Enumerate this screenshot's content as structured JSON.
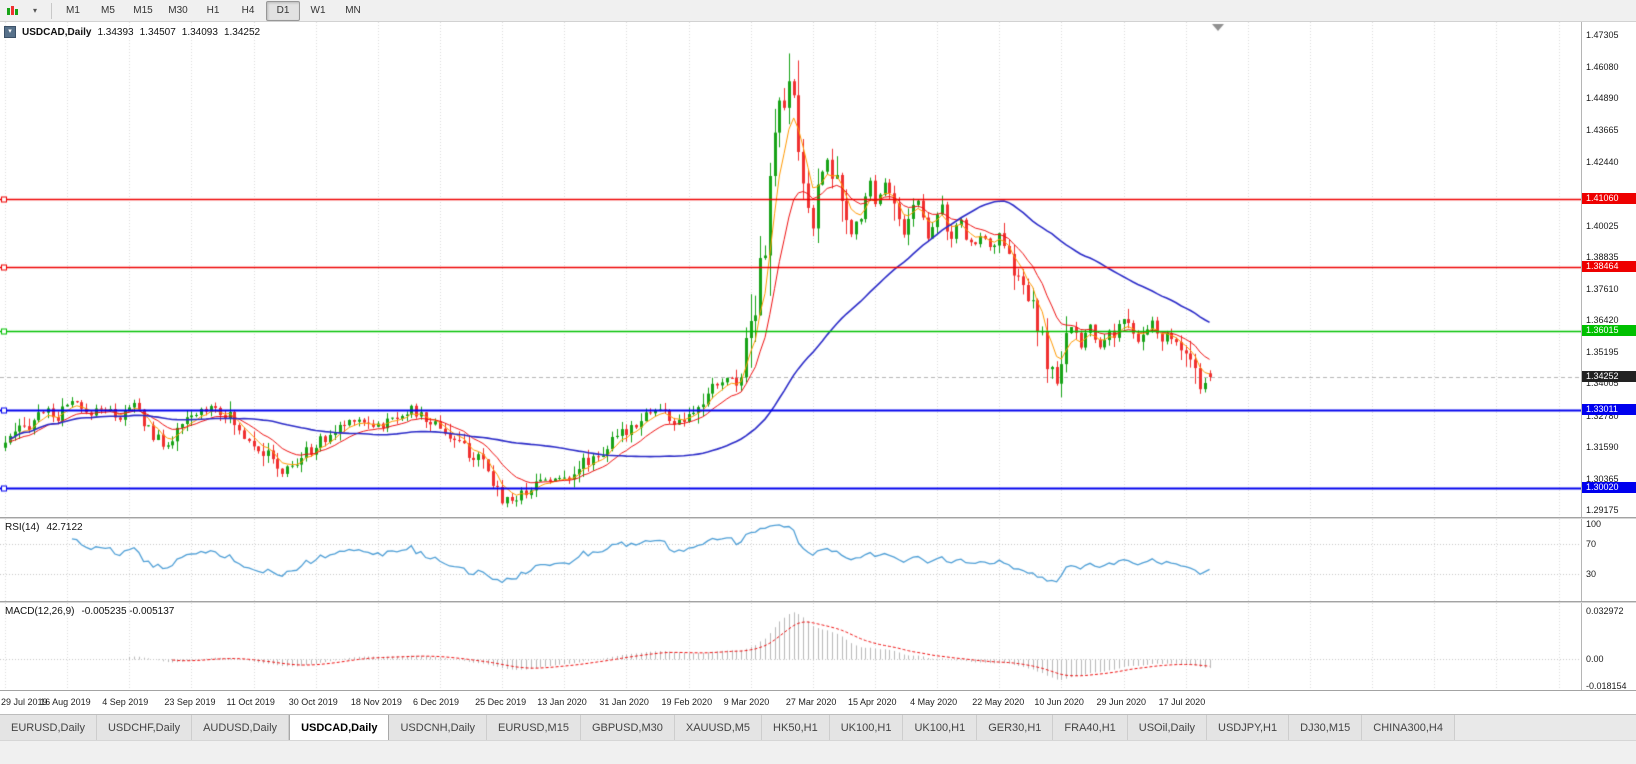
{
  "toolbar": {
    "timeframes": [
      {
        "label": "M1"
      },
      {
        "label": "M5"
      },
      {
        "label": "M15"
      },
      {
        "label": "M30"
      },
      {
        "label": "H1"
      },
      {
        "label": "H4"
      },
      {
        "label": "D1"
      },
      {
        "label": "W1"
      },
      {
        "label": "MN"
      }
    ],
    "active_timeframe": "D1"
  },
  "chart_header": {
    "symbol_period": "USDCAD,Daily",
    "open": "1.34393",
    "high": "1.34507",
    "low": "1.34093",
    "close": "1.34252"
  },
  "indicators": {
    "rsi": {
      "label": "RSI(14)",
      "value": "42.7122"
    },
    "macd": {
      "label": "MACD(12,26,9)",
      "values": "-0.005235 -0.005137"
    }
  },
  "rsi_scale": [
    "100",
    "70",
    "30"
  ],
  "macd_scale": [
    {
      "label": "0.032972",
      "value": 0.032972
    },
    {
      "label": "0.00",
      "value": 0
    },
    {
      "label": "-0.018154",
      "value": -0.018154
    }
  ],
  "dates": [
    "29 Jul 2019",
    "16 Aug 2019",
    "4 Sep 2019",
    "23 Sep 2019",
    "11 Oct 2019",
    "30 Oct 2019",
    "18 Nov 2019",
    "6 Dec 2019",
    "25 Dec 2019",
    "13 Jan 2020",
    "31 Jan 2020",
    "19 Feb 2020",
    "9 Mar 2020",
    "27 Mar 2020",
    "15 Apr 2020",
    "4 May 2020",
    "22 May 2020",
    "10 Jun 2020",
    "29 Jun 2020",
    "17 Jul 2020"
  ],
  "tabs": {
    "active_index": 3,
    "items": [
      {
        "label": "EURUSD,Daily"
      },
      {
        "label": "USDCHF,Daily"
      },
      {
        "label": "AUDUSD,Daily"
      },
      {
        "label": "USDCAD,Daily"
      },
      {
        "label": "USDCNH,Daily"
      },
      {
        "label": "EURUSD,M15"
      },
      {
        "label": "GBPUSD,M30"
      },
      {
        "label": "XAUUSD,M5"
      },
      {
        "label": "HK50,H1"
      },
      {
        "label": "UK100,H1"
      },
      {
        "label": "UK100,H1"
      },
      {
        "label": "GER30,H1"
      },
      {
        "label": "FRA40,H1"
      },
      {
        "label": "USOil,Daily"
      },
      {
        "label": "USDJPY,H1"
      },
      {
        "label": "DJ30,M15"
      },
      {
        "label": "CHINA300,H4"
      }
    ]
  },
  "colors": {
    "bull": "#17a317",
    "bear": "#f03030",
    "ma_fast": "#ff9900",
    "ma_mid": "#ee1111",
    "ma_slow": "#2b2bc8",
    "rsi_line": "#4f9fd6",
    "macd_hist": "#b8b8b8",
    "macd_signal": "#ee1111",
    "grid": "#dadada",
    "current_line": "#b4b4b4",
    "level_red": "#ee0000",
    "level_green": "#00c000",
    "level_blue": "#0000ee",
    "current_tag_bg": "#222222"
  },
  "chart_data": {
    "type": "candlestick",
    "symbol": "USDCAD",
    "timeframe": "Daily",
    "ohlc_last": {
      "open": 1.34393,
      "high": 1.34507,
      "low": 1.34093,
      "close": 1.34252
    },
    "current_price": 1.34252,
    "candle_count": 253,
    "max_wick": 1.466,
    "ylim": {
      "min": 1.28908,
      "max": 1.47801
    },
    "y_ticks": [
      "1.47305",
      "1.46080",
      "1.44890",
      "1.43665",
      "1.42440",
      "1.40025",
      "1.38835",
      "1.37610",
      "1.36420",
      "1.35195",
      "1.34005",
      "1.32780",
      "1.31590",
      "1.30365",
      "1.29175"
    ],
    "levels": [
      {
        "label": "1.41060",
        "price": 1.4106,
        "color": "red"
      },
      {
        "label": "1.38464",
        "price": 1.38464,
        "color": "red"
      },
      {
        "label": "1.36015",
        "price": 1.36015,
        "color": "green"
      },
      {
        "label": "1.33011",
        "price": 1.33011,
        "color": "blue"
      },
      {
        "label": "1.30020",
        "price": 1.3002,
        "color": "blue"
      }
    ],
    "moving_averages": [
      {
        "type": "ema",
        "period": 5,
        "color_key": "ma_fast"
      },
      {
        "type": "ema",
        "period": 13,
        "color_key": "ma_mid"
      },
      {
        "type": "sma",
        "period": 50,
        "color_key": "ma_slow"
      }
    ],
    "rsi": {
      "period": 14,
      "current": 42.7122,
      "guide_levels": [
        70,
        30
      ],
      "range": [
        0,
        100
      ]
    },
    "macd": {
      "fast": 12,
      "slow": 26,
      "signal": 9,
      "current": [
        -0.005235,
        -0.005137
      ],
      "range": [
        -0.018154,
        0.032972
      ]
    },
    "price_path": [
      [
        0,
        1.3175
      ],
      [
        4,
        1.323
      ],
      [
        8,
        1.33
      ],
      [
        11,
        1.327
      ],
      [
        14,
        1.333
      ],
      [
        17,
        1.328
      ],
      [
        20,
        1.331
      ],
      [
        24,
        1.327
      ],
      [
        27,
        1.332
      ],
      [
        30,
        1.323
      ],
      [
        33,
        1.316
      ],
      [
        36,
        1.321
      ],
      [
        39,
        1.327
      ],
      [
        43,
        1.332
      ],
      [
        46,
        1.329
      ],
      [
        49,
        1.322
      ],
      [
        52,
        1.318
      ],
      [
        55,
        1.312
      ],
      [
        58,
        1.306
      ],
      [
        61,
        1.31
      ],
      [
        64,
        1.315
      ],
      [
        67,
        1.319
      ],
      [
        70,
        1.323
      ],
      [
        73,
        1.327
      ],
      [
        76,
        1.325
      ],
      [
        79,
        1.324
      ],
      [
        82,
        1.328
      ],
      [
        85,
        1.33
      ],
      [
        88,
        1.326
      ],
      [
        91,
        1.324
      ],
      [
        94,
        1.318
      ],
      [
        97,
        1.314
      ],
      [
        100,
        1.308
      ],
      [
        102,
        1.302
      ],
      [
        104,
        1.2965
      ],
      [
        107,
        1.296
      ],
      [
        110,
        1.301
      ],
      [
        113,
        1.304
      ],
      [
        116,
        1.303
      ],
      [
        119,
        1.307
      ],
      [
        122,
        1.311
      ],
      [
        125,
        1.314
      ],
      [
        128,
        1.319
      ],
      [
        131,
        1.324
      ],
      [
        134,
        1.329
      ],
      [
        137,
        1.33
      ],
      [
        140,
        1.325
      ],
      [
        143,
        1.326
      ],
      [
        146,
        1.333
      ],
      [
        149,
        1.34
      ],
      [
        151,
        1.342
      ],
      [
        153,
        1.34
      ],
      [
        155,
        1.355
      ],
      [
        156,
        1.364
      ],
      [
        157,
        1.376
      ],
      [
        158,
        1.39
      ],
      [
        159,
        1.399
      ],
      [
        160,
        1.41
      ],
      [
        161,
        1.434
      ],
      [
        162,
        1.449
      ],
      [
        163,
        1.442
      ],
      [
        164,
        1.455
      ],
      [
        165,
        1.446
      ],
      [
        166,
        1.429
      ],
      [
        167,
        1.416
      ],
      [
        168,
        1.406
      ],
      [
        169,
        1.401
      ],
      [
        170,
        1.411
      ],
      [
        171,
        1.421
      ],
      [
        172,
        1.427
      ],
      [
        173,
        1.421
      ],
      [
        174,
        1.414
      ],
      [
        175,
        1.407
      ],
      [
        176,
        1.401
      ],
      [
        177,
        1.397
      ],
      [
        178,
        1.401
      ],
      [
        179,
        1.407
      ],
      [
        180,
        1.413
      ],
      [
        181,
        1.417
      ],
      [
        182,
        1.409
      ],
      [
        183,
        1.414
      ],
      [
        184,
        1.418
      ],
      [
        185,
        1.413
      ],
      [
        186,
        1.407
      ],
      [
        187,
        1.402
      ],
      [
        188,
        1.398
      ],
      [
        189,
        1.402
      ],
      [
        190,
        1.408
      ],
      [
        191,
        1.41
      ],
      [
        192,
        1.403
      ],
      [
        193,
        1.397
      ],
      [
        194,
        1.401
      ],
      [
        195,
        1.406
      ],
      [
        196,
        1.408
      ],
      [
        197,
        1.399
      ],
      [
        198,
        1.395
      ],
      [
        199,
        1.399
      ],
      [
        200,
        1.401
      ],
      [
        201,
        1.396
      ],
      [
        202,
        1.393
      ],
      [
        204,
        1.396
      ],
      [
        206,
        1.393
      ],
      [
        208,
        1.395
      ],
      [
        210,
        1.387
      ],
      [
        212,
        1.38
      ],
      [
        214,
        1.373
      ],
      [
        216,
        1.361
      ],
      [
        218,
        1.349
      ],
      [
        220,
        1.34
      ],
      [
        221,
        1.344
      ],
      [
        222,
        1.356
      ],
      [
        223,
        1.363
      ],
      [
        224,
        1.358
      ],
      [
        225,
        1.355
      ],
      [
        226,
        1.359
      ],
      [
        227,
        1.362
      ],
      [
        228,
        1.356
      ],
      [
        229,
        1.353
      ],
      [
        230,
        1.357
      ],
      [
        231,
        1.361
      ],
      [
        232,
        1.359
      ],
      [
        233,
        1.363
      ],
      [
        234,
        1.365
      ],
      [
        235,
        1.361
      ],
      [
        236,
        1.357
      ],
      [
        237,
        1.355
      ],
      [
        238,
        1.358
      ],
      [
        239,
        1.361
      ],
      [
        240,
        1.363
      ],
      [
        241,
        1.359
      ],
      [
        242,
        1.356
      ],
      [
        243,
        1.359
      ],
      [
        244,
        1.356
      ],
      [
        245,
        1.354
      ],
      [
        246,
        1.352
      ],
      [
        247,
        1.355
      ],
      [
        248,
        1.346
      ],
      [
        249,
        1.342
      ],
      [
        250,
        1.337
      ],
      [
        251,
        1.34
      ],
      [
        252,
        1.3425
      ]
    ]
  }
}
